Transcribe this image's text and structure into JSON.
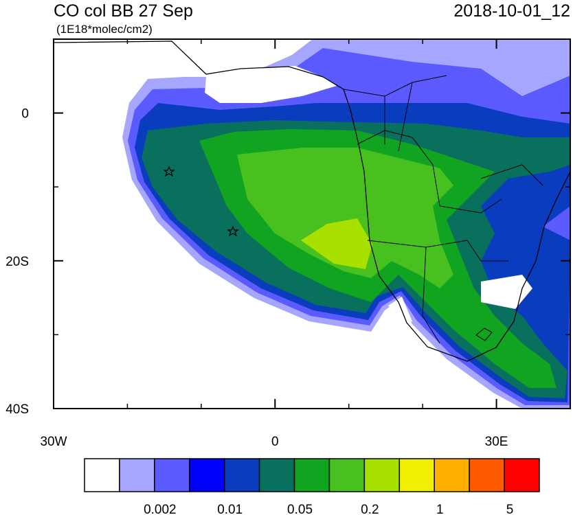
{
  "title": "CO col BB 27 Sep",
  "subtitle": "(1E18*molec/cm2)",
  "date": "2018-10-01_12",
  "map": {
    "xlim": [
      -30,
      40
    ],
    "ylim": [
      -40,
      10
    ],
    "xticks": [
      {
        "value": -30,
        "label": "30W"
      },
      0,
      {
        "value": 30,
        "label": "30E"
      }
    ],
    "xminor": [
      -20,
      -10,
      10,
      20,
      40
    ],
    "yticks": [
      0,
      {
        "value": -20,
        "label": "20S"
      },
      {
        "value": -40,
        "label": "40S"
      }
    ],
    "yminor": [
      10,
      -10,
      -30
    ]
  },
  "colorbar": {
    "colors": [
      "#ffffff",
      "#a6a6ff",
      "#5a5aff",
      "#0000ff",
      "#0a3cbe",
      "#08705c",
      "#10a420",
      "#48c020",
      "#a8e000",
      "#f0f000",
      "#ffb000",
      "#ff5a00",
      "#ff0000"
    ],
    "labels": [
      "0.002",
      "0.01",
      "0.05",
      "0.2",
      "1",
      "5"
    ]
  }
}
